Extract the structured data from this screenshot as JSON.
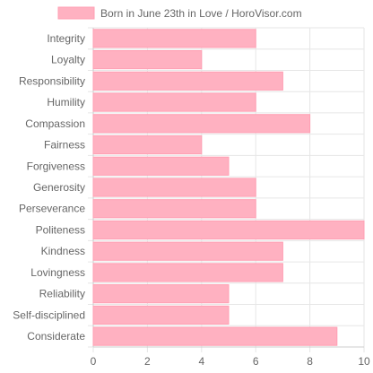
{
  "chart_data": {
    "type": "bar",
    "orientation": "horizontal",
    "categories": [
      "Integrity",
      "Loyalty",
      "Responsibility",
      "Humility",
      "Compassion",
      "Fairness",
      "Forgiveness",
      "Generosity",
      "Perseverance",
      "Politeness",
      "Kindness",
      "Lovingness",
      "Reliability",
      "Self-disciplined",
      "Considerate"
    ],
    "series": [
      {
        "name": "Born in June 23th in Love / HoroVisor.com",
        "values": [
          6,
          4,
          7,
          6,
          8,
          4,
          5,
          6,
          6,
          10,
          7,
          7,
          5,
          5,
          9
        ]
      }
    ],
    "xlim": [
      0,
      10
    ],
    "xticks": [
      0,
      2,
      4,
      6,
      8,
      10
    ],
    "grid": true,
    "legend_position": "top",
    "colors": {
      "bar_fill": "#ffb1c1",
      "bar_stroke": "#ff9fb3",
      "grid": "#e6e6e6",
      "axis": "#cccccc",
      "text": "#666666"
    }
  }
}
